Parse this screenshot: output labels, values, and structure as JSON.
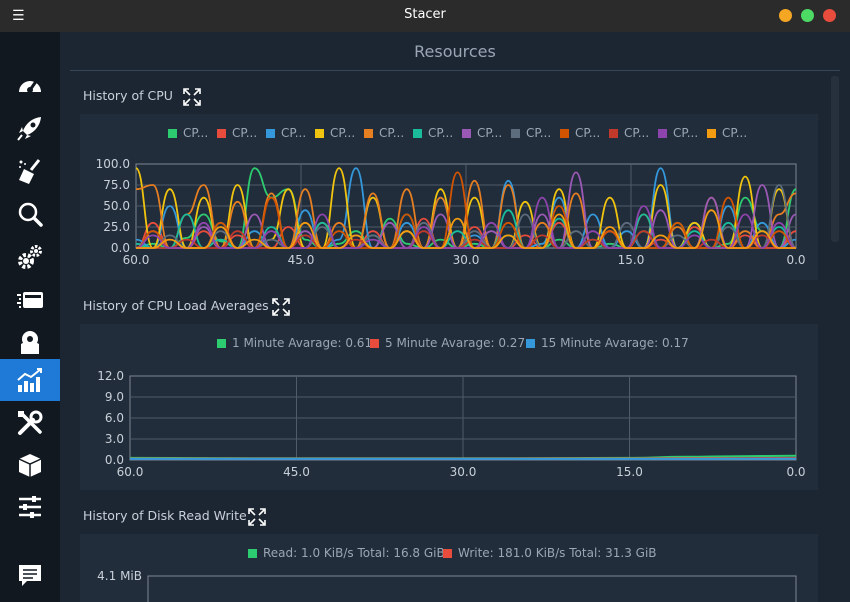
{
  "window": {
    "title": "Stacer",
    "controls": {
      "minimize_color": "#f5a623",
      "maximize_color": "#4cd964",
      "close_color": "#e74c3c"
    }
  },
  "sidebar": {
    "items": [
      {
        "name": "dashboard",
        "icon": "speedometer-icon"
      },
      {
        "name": "startup-apps",
        "icon": "rocket-icon"
      },
      {
        "name": "system-cleaner",
        "icon": "broom-icon"
      },
      {
        "name": "search",
        "icon": "magnifier-icon"
      },
      {
        "name": "services",
        "icon": "gears-icon"
      },
      {
        "name": "processes",
        "icon": "processes-icon"
      },
      {
        "name": "uninstaller",
        "icon": "disk-icon"
      },
      {
        "name": "resources",
        "icon": "chart-icon",
        "active": true
      },
      {
        "name": "helpers",
        "icon": "tools-icon"
      },
      {
        "name": "apt-repository",
        "icon": "box-icon"
      },
      {
        "name": "settings",
        "icon": "sliders-icon"
      },
      {
        "name": "feedback",
        "icon": "chat-icon"
      }
    ]
  },
  "main": {
    "title": "Resources"
  },
  "sections": {
    "cpu": {
      "label": "History of CPU"
    },
    "load": {
      "label": "History of CPU Load Averages"
    },
    "disk": {
      "label": "History of Disk Read Write"
    }
  },
  "chart_data": [
    {
      "type": "line",
      "title": "History of CPU",
      "legend": [
        "CP...",
        "CP...",
        "CP...",
        "CP...",
        "CP...",
        "CP...",
        "CP...",
        "CP...",
        "CP...",
        "CP...",
        "CP...",
        "CP..."
      ],
      "legend_colors": [
        "#2ecc71",
        "#e74c3c",
        "#3498db",
        "#f1c40f",
        "#e67e22",
        "#1abc9c",
        "#9b59b6",
        "#5d6d7e",
        "#d35400",
        "#c0392b",
        "#8e44ad",
        "#f39c12"
      ],
      "x_ticks": [
        "60.0",
        "45.0",
        "30.0",
        "15.0",
        "0.0"
      ],
      "y_ticks": [
        "100.0",
        "75.0",
        "50.0",
        "25.0",
        "0.0"
      ],
      "xlim": [
        60,
        0
      ],
      "ylim": [
        0,
        100
      ],
      "grid": true,
      "series": [
        {
          "values": [
            0,
            5,
            0,
            12,
            40,
            8,
            0,
            95,
            60,
            70,
            10,
            0,
            5,
            20,
            0,
            35,
            5,
            0,
            10,
            0,
            5,
            0,
            15,
            0,
            0,
            10,
            0,
            0,
            5,
            0,
            20,
            0,
            30,
            0,
            0,
            5,
            60,
            20,
            0,
            70
          ]
        },
        {
          "values": [
            0,
            30,
            0,
            0,
            20,
            0,
            15,
            0,
            0,
            25,
            0,
            30,
            0,
            0,
            20,
            0,
            0,
            35,
            0,
            0,
            25,
            0,
            0,
            15,
            0,
            30,
            0,
            0,
            20,
            0,
            0,
            10,
            0,
            25,
            0,
            0,
            15,
            0,
            0,
            20
          ]
        },
        {
          "values": [
            10,
            0,
            50,
            0,
            0,
            30,
            0,
            20,
            0,
            0,
            45,
            0,
            10,
            95,
            0,
            0,
            30,
            0,
            60,
            0,
            15,
            0,
            80,
            0,
            5,
            60,
            0,
            40,
            0,
            20,
            0,
            95,
            0,
            30,
            0,
            50,
            0,
            30,
            0,
            10
          ]
        },
        {
          "values": [
            95,
            0,
            70,
            0,
            60,
            0,
            75,
            0,
            10,
            70,
            0,
            0,
            95,
            0,
            60,
            0,
            20,
            0,
            70,
            0,
            60,
            0,
            0,
            55,
            0,
            70,
            0,
            0,
            60,
            0,
            0,
            75,
            0,
            30,
            0,
            0,
            85,
            0,
            70,
            0
          ]
        },
        {
          "values": [
            70,
            75,
            0,
            40,
            75,
            0,
            55,
            0,
            65,
            0,
            70,
            0,
            30,
            0,
            65,
            0,
            70,
            0,
            60,
            0,
            80,
            0,
            75,
            0,
            30,
            0,
            65,
            0,
            20,
            0,
            40,
            0,
            25,
            0,
            60,
            0,
            20,
            0,
            40,
            65
          ]
        },
        {
          "values": [
            5,
            0,
            0,
            40,
            0,
            10,
            0,
            0,
            25,
            0,
            0,
            30,
            0,
            0,
            15,
            0,
            40,
            0,
            0,
            20,
            0,
            0,
            45,
            0,
            0,
            35,
            0,
            10,
            0,
            0,
            40,
            0,
            0,
            20,
            0,
            30,
            0,
            0,
            25,
            0
          ]
        },
        {
          "values": [
            0,
            20,
            0,
            0,
            25,
            0,
            0,
            40,
            0,
            0,
            20,
            0,
            0,
            15,
            0,
            30,
            0,
            0,
            40,
            0,
            0,
            20,
            0,
            0,
            40,
            0,
            90,
            0,
            20,
            0,
            0,
            45,
            0,
            0,
            60,
            0,
            0,
            75,
            0,
            40
          ]
        },
        {
          "values": [
            0,
            0,
            15,
            0,
            0,
            20,
            0,
            0,
            10,
            0,
            0,
            25,
            0,
            0,
            15,
            0,
            0,
            30,
            0,
            0,
            20,
            0,
            0,
            40,
            0,
            0,
            20,
            0,
            0,
            30,
            0,
            0,
            15,
            0,
            0,
            25,
            0,
            0,
            75,
            0
          ]
        },
        {
          "values": [
            0,
            20,
            0,
            0,
            0,
            30,
            0,
            0,
            60,
            0,
            0,
            0,
            20,
            0,
            0,
            0,
            40,
            0,
            0,
            90,
            0,
            0,
            30,
            0,
            0,
            50,
            0,
            0,
            20,
            0,
            0,
            0,
            30,
            0,
            0,
            60,
            0,
            0,
            20,
            0
          ]
        },
        {
          "values": [
            0,
            0,
            0,
            10,
            0,
            0,
            20,
            0,
            0,
            0,
            15,
            0,
            0,
            10,
            0,
            0,
            0,
            20,
            0,
            0,
            10,
            0,
            0,
            0,
            15,
            0,
            0,
            10,
            0,
            0,
            20,
            0,
            0,
            0,
            10,
            0,
            0,
            15,
            0,
            0
          ]
        },
        {
          "values": [
            0,
            15,
            0,
            0,
            30,
            0,
            0,
            0,
            20,
            0,
            0,
            40,
            0,
            0,
            10,
            0,
            0,
            25,
            0,
            0,
            0,
            30,
            0,
            0,
            60,
            0,
            0,
            20,
            0,
            0,
            50,
            0,
            0,
            15,
            0,
            0,
            40,
            0,
            30,
            0
          ]
        },
        {
          "values": [
            0,
            0,
            10,
            0,
            0,
            25,
            0,
            10,
            0,
            0,
            30,
            0,
            0,
            15,
            0,
            0,
            20,
            0,
            0,
            35,
            0,
            0,
            15,
            0,
            0,
            40,
            0,
            0,
            25,
            0,
            0,
            15,
            0,
            0,
            45,
            0,
            0,
            20,
            0,
            0
          ]
        }
      ]
    },
    {
      "type": "line",
      "title": "History of CPU Load Averages",
      "legend": [
        "1 Minute Avarage: 0.61",
        "5 Minute Avarage: 0.27",
        "15 Minute Avarage: 0.17"
      ],
      "legend_colors": [
        "#2ecc71",
        "#e74c3c",
        "#3498db"
      ],
      "x_ticks": [
        "60.0",
        "45.0",
        "30.0",
        "15.0",
        "0.0"
      ],
      "y_ticks": [
        "12.0",
        "9.0",
        "6.0",
        "3.0",
        "0.0"
      ],
      "xlim": [
        60,
        0
      ],
      "ylim": [
        0,
        12
      ],
      "grid": true,
      "series": [
        {
          "name": "1 Minute Avarage: 0.61",
          "x": [
            60,
            45,
            30,
            15,
            10,
            5,
            0
          ],
          "values": [
            0.3,
            0.25,
            0.25,
            0.3,
            0.45,
            0.55,
            0.61
          ]
        },
        {
          "name": "5 Minute Avarage: 0.27",
          "x": [
            60,
            45,
            30,
            15,
            10,
            5,
            0
          ],
          "values": [
            0.2,
            0.2,
            0.2,
            0.22,
            0.24,
            0.26,
            0.27
          ]
        },
        {
          "name": "15 Minute Avarage: 0.17",
          "x": [
            60,
            45,
            30,
            15,
            10,
            5,
            0
          ],
          "values": [
            0.15,
            0.15,
            0.15,
            0.16,
            0.16,
            0.17,
            0.17
          ]
        }
      ]
    },
    {
      "type": "line",
      "title": "History of Disk Read Write",
      "legend": [
        "Read: 1.0 KiB/s Total: 16.8 GiB",
        "Write: 181.0 KiB/s Total: 31.3 GiB"
      ],
      "legend_colors": [
        "#2ecc71",
        "#e74c3c"
      ],
      "y_ticks": [
        "4.1 MiB"
      ],
      "grid": true
    }
  ]
}
